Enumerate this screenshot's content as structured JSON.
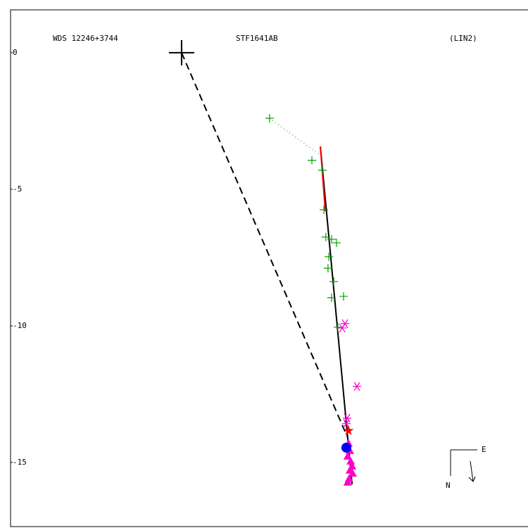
{
  "chart_data": {
    "type": "scatter",
    "title_left": "WDS 12246+3744",
    "title_center": "STF1641AB",
    "title_right": "(LIN2)",
    "compass": {
      "east": "E",
      "north": "N"
    },
    "xlim": [
      -6.26,
      12.68
    ],
    "ylim": [
      -17.35,
      1.57
    ],
    "yticks": [
      0,
      -5,
      -10,
      -15
    ],
    "grid": false,
    "lines": [
      {
        "x": [
          0,
          6.06
        ],
        "values": [
          0,
          -14.05
        ],
        "color": "#000000",
        "style": "dashed"
      },
      {
        "x": [
          5.08,
          6.24
        ],
        "values": [
          -3.43,
          -15.8
        ],
        "color": "#000000",
        "style": "solid"
      },
      {
        "x": [
          5.08,
          5.26
        ],
        "values": [
          -3.43,
          -5.8
        ],
        "color": "#ff0000",
        "style": "solid"
      },
      {
        "x": [
          3.22,
          5.08
        ],
        "values": [
          -2.4,
          -3.75
        ],
        "color": "#00a000",
        "style": "dotted"
      }
    ],
    "series": [
      {
        "marker": "large-cross",
        "color": "#000000",
        "x": [
          0
        ],
        "values": [
          0
        ]
      },
      {
        "marker": "plus",
        "color": "#00a000",
        "x": [
          3.22,
          4.77,
          5.15,
          5.21,
          5.28,
          5.49,
          5.67,
          5.39,
          5.36,
          5.57,
          5.49,
          5.93,
          5.72
        ],
        "values": [
          -2.4,
          -3.94,
          -4.3,
          -5.75,
          -6.75,
          -6.83,
          -6.96,
          -7.47,
          -7.89,
          -8.38,
          -8.97,
          -8.92,
          -10.05
        ]
      },
      {
        "marker": "asterisk",
        "color": "#ff00cc",
        "x": [
          5.98,
          5.88,
          6.42,
          6.06,
          6.03
        ],
        "values": [
          -9.92,
          -10.08,
          -12.22,
          -13.38,
          -13.58
        ]
      },
      {
        "marker": "triangle",
        "color": "#ff00cc",
        "x": [
          6.11,
          6.16,
          6.08,
          6.19,
          6.24,
          6.16,
          6.26,
          6.13,
          6.08
        ],
        "values": [
          -14.3,
          -14.56,
          -14.77,
          -14.95,
          -15.13,
          -15.28,
          -15.39,
          -15.59,
          -15.72
        ]
      },
      {
        "marker": "star",
        "color": "#ff0000",
        "x": [
          6.11
        ],
        "values": [
          -13.84
        ]
      },
      {
        "marker": "circle",
        "color": "#0000ff",
        "x": [
          6.03
        ],
        "values": [
          -14.46
        ]
      }
    ]
  }
}
